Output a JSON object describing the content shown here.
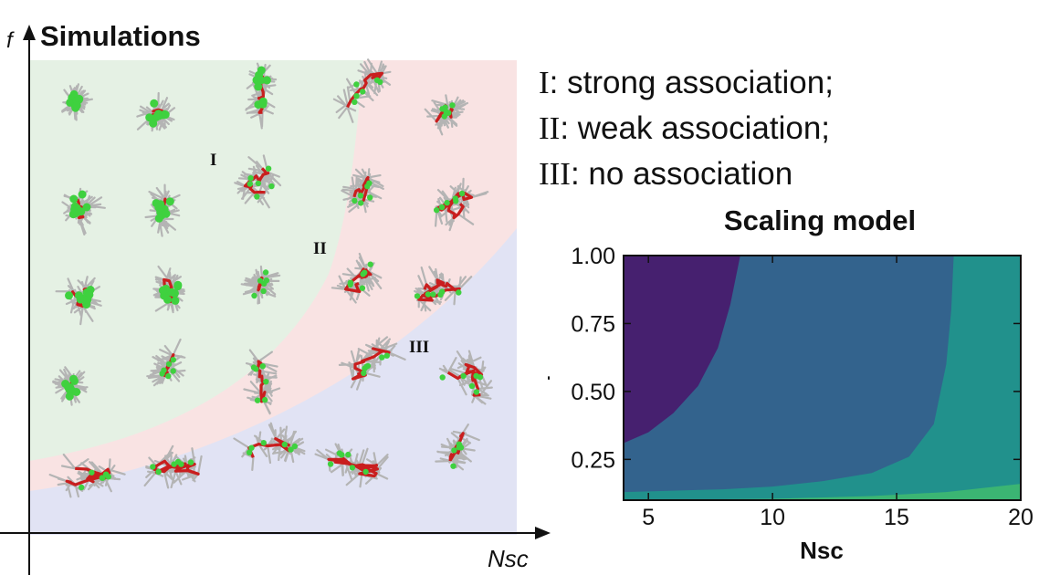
{
  "chart_data": [
    {
      "type": "diagram",
      "title": "Simulations",
      "xlabel": "Nsc",
      "ylabel": "f",
      "regions": [
        {
          "label": "I",
          "color": "#e5f1e4"
        },
        {
          "label": "II",
          "color": "#f9e3e3"
        },
        {
          "label": "III",
          "color": "#e1e3f4"
        }
      ],
      "grid": {
        "rows": 5,
        "cols": 5
      }
    },
    {
      "type": "heatmap",
      "title": "Scaling model",
      "xlabel": "Nsc",
      "ylabel": "f",
      "xlim": [
        4,
        20
      ],
      "ylim": [
        0.1,
        1.0
      ],
      "xticks": [
        "5",
        "10",
        "15",
        "20"
      ],
      "yticks": [
        "0.25",
        "0.50",
        "0.75",
        "1.00"
      ],
      "xtick_values": [
        5,
        10,
        15,
        20
      ],
      "ytick_values": [
        0.25,
        0.5,
        0.75,
        1.0
      ],
      "colors": [
        "#46206f",
        "#33638d",
        "#21918c",
        "#3bb573"
      ],
      "boundaries": [
        {
          "between": [
            0,
            1
          ],
          "points": [
            [
              4,
              0.31
            ],
            [
              5,
              0.35
            ],
            [
              6,
              0.42
            ],
            [
              7,
              0.52
            ],
            [
              7.8,
              0.66
            ],
            [
              8.3,
              0.82
            ],
            [
              8.7,
              1.0
            ]
          ]
        },
        {
          "between": [
            1,
            2
          ],
          "points": [
            [
              4,
              0.13
            ],
            [
              6,
              0.135
            ],
            [
              8,
              0.14
            ],
            [
              10,
              0.15
            ],
            [
              12,
              0.17
            ],
            [
              14,
              0.2
            ],
            [
              15.5,
              0.26
            ],
            [
              16.5,
              0.38
            ],
            [
              17,
              0.6
            ],
            [
              17.2,
              0.8
            ],
            [
              17.3,
              1.0
            ]
          ]
        },
        {
          "between": [
            2,
            3
          ],
          "points": [
            [
              4,
              0.1
            ],
            [
              10,
              0.105
            ],
            [
              14,
              0.115
            ],
            [
              17,
              0.13
            ],
            [
              20,
              0.16
            ]
          ]
        }
      ]
    }
  ],
  "legend": [
    {
      "num": "I",
      "text": ": strong association;"
    },
    {
      "num": "II",
      "text": ": weak association;"
    },
    {
      "num": "III",
      "text": ": no association"
    }
  ],
  "colors": {
    "chain": "#c91e1e",
    "side_chain": "#b4b4b4",
    "sticker": "#3fd13f"
  }
}
